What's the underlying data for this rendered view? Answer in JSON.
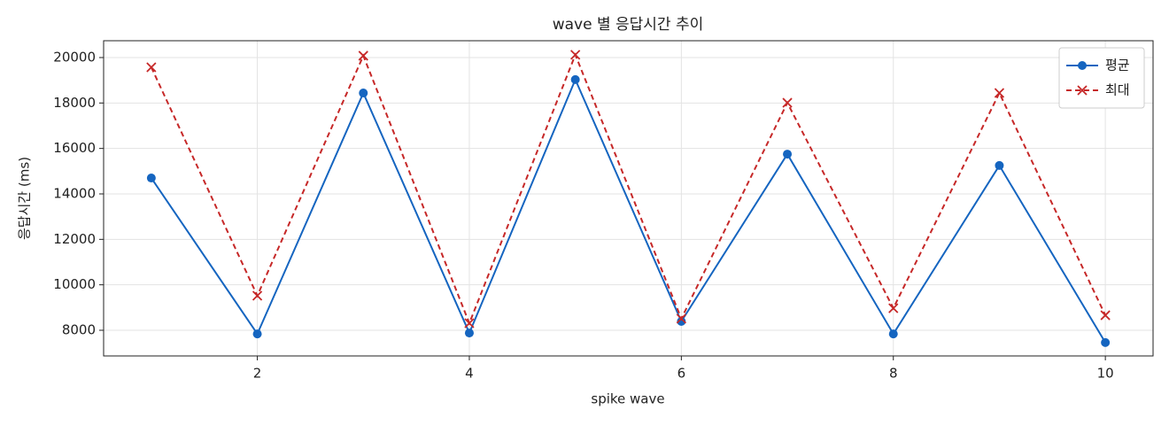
{
  "chart_data": {
    "type": "line",
    "title": "wave 별 응답시간 추이",
    "xlabel": "spike wave",
    "ylabel": "응답시간 (ms)",
    "x": [
      1,
      2,
      3,
      4,
      5,
      6,
      7,
      8,
      9,
      10
    ],
    "series": [
      {
        "name": "평균",
        "color": "#1565c0",
        "marker": "o",
        "linestyle": "solid",
        "values": [
          14700,
          7840,
          18440,
          7880,
          19030,
          8390,
          15750,
          7840,
          15250,
          7460
        ]
      },
      {
        "name": "최대",
        "color": "#c62828",
        "marker": "x",
        "linestyle": "dashed",
        "values": [
          19570,
          9520,
          20080,
          8310,
          20120,
          8510,
          18010,
          8970,
          18440,
          8660
        ]
      }
    ],
    "xlim": [
      0.55,
      10.45
    ],
    "xticks": [
      2,
      4,
      6,
      8,
      10
    ],
    "ylim": [
      6870,
      20740
    ],
    "yticks": [
      8000,
      10000,
      12000,
      14000,
      16000,
      18000,
      20000
    ],
    "grid": true,
    "legend": "upper right"
  }
}
